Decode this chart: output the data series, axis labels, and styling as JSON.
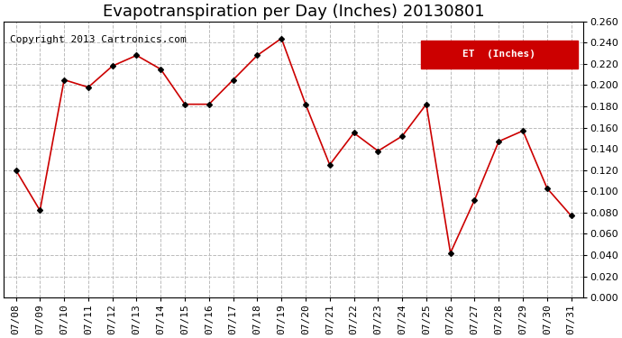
{
  "title": "Evapotranspiration per Day (Inches) 20130801",
  "copyright": "Copyright 2013 Cartronics.com",
  "legend_label": "ET  (Inches)",
  "legend_bg": "#cc0000",
  "legend_text_color": "#ffffff",
  "x_labels": [
    "07/08",
    "07/09",
    "07/10",
    "07/11",
    "07/12",
    "07/13",
    "07/14",
    "07/15",
    "07/16",
    "07/17",
    "07/18",
    "07/19",
    "07/20",
    "07/21",
    "07/22",
    "07/23",
    "07/24",
    "07/25",
    "07/26",
    "07/27",
    "07/28",
    "07/29",
    "07/30",
    "07/31"
  ],
  "y_values": [
    0.12,
    0.082,
    0.205,
    0.198,
    0.218,
    0.228,
    0.215,
    0.182,
    0.182,
    0.205,
    0.228,
    0.244,
    0.182,
    0.125,
    0.155,
    0.138,
    0.152,
    0.182,
    0.042,
    0.092,
    0.147,
    0.157,
    0.103,
    0.077
  ],
  "line_color": "#cc0000",
  "marker_color": "#000000",
  "bg_color": "#ffffff",
  "plot_bg_color": "#ffffff",
  "grid_color": "#bbbbbb",
  "ylim": [
    0.0,
    0.26
  ],
  "ytick_step": 0.02,
  "title_fontsize": 13,
  "copyright_fontsize": 8,
  "tick_fontsize": 8
}
